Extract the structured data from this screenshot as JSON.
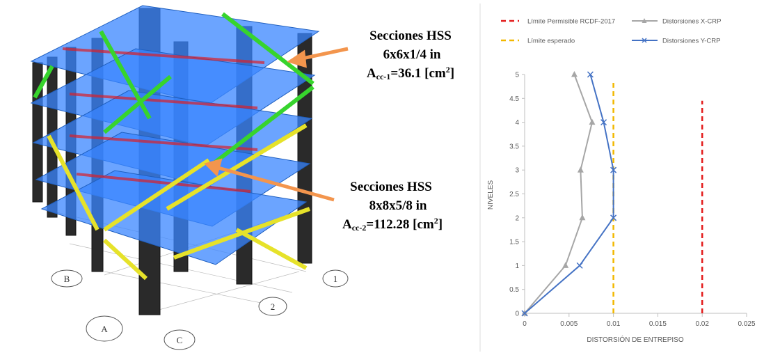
{
  "model": {
    "annotations": [
      {
        "line1": "Secciones HSS",
        "line2": "6x6x1/4 in",
        "area": {
          "symbol": "A",
          "sub": "cc-1",
          "text": "=36.1 [cm",
          "sup": "2",
          "close": "]"
        }
      },
      {
        "line1": "Secciones HSS",
        "line2": "8x8x5/8 in",
        "area": {
          "symbol": "A",
          "sub": "cc-2",
          "text": "=112.28 [cm",
          "sup": "2",
          "close": "]"
        }
      }
    ],
    "grid_labels": [
      "A",
      "B",
      "C",
      "1",
      "2"
    ]
  },
  "chart_data": {
    "type": "line",
    "x_label": "DISTORSIÓN DE ENTREPISO",
    "y_label": "NIVELES",
    "xlim": [
      0,
      0.025
    ],
    "xticks": [
      0,
      0.005,
      0.01,
      0.015,
      0.02,
      0.025
    ],
    "ylim": [
      0,
      5
    ],
    "yticks": [
      0,
      0.5,
      1,
      1.5,
      2,
      2.5,
      3,
      3.5,
      4,
      4.5,
      5
    ],
    "series": [
      {
        "name": "Límite Permisible RCDF-2017",
        "color": "#e31b1b",
        "dash": true,
        "marker": "none",
        "x": [
          0.02,
          0.02
        ],
        "values": [
          0,
          4.45
        ]
      },
      {
        "name": "Distorsiones X-CRP",
        "color": "#a6a6a6",
        "dash": false,
        "marker": "triangle",
        "x": [
          0,
          0.0046,
          0.0065,
          0.0063,
          0.0076,
          0.0056
        ],
        "values": [
          0,
          1,
          2,
          3,
          4,
          5
        ]
      },
      {
        "name": "Límite esperado",
        "color": "#f2b800",
        "dash": true,
        "marker": "none",
        "x": [
          0.01,
          0.01
        ],
        "values": [
          0,
          4.88
        ]
      },
      {
        "name": "Distorsiones Y-CRP",
        "color": "#4472c4",
        "dash": false,
        "marker": "x",
        "x": [
          0,
          0.0062,
          0.01,
          0.01,
          0.0089,
          0.0074
        ],
        "values": [
          0,
          1,
          2,
          3,
          4,
          5
        ]
      }
    ]
  }
}
